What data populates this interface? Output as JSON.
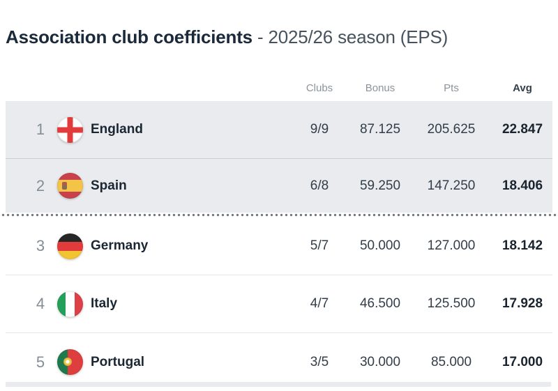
{
  "title": {
    "main": "Association club coefficients",
    "suffix": "- 2025/26 season (EPS)"
  },
  "table": {
    "columns": {
      "clubs": "Clubs",
      "bonus": "Bonus",
      "pts": "Pts",
      "avg": "Avg"
    },
    "sorted_by": "Avg",
    "eps_cutoff_after_rank": 2,
    "rows": [
      {
        "rank": "1",
        "country": "England",
        "flag_icon": "england-flag-icon",
        "clubs": "9/9",
        "bonus": "87.125",
        "pts": "205.625",
        "avg": "22.847",
        "qualified": true
      },
      {
        "rank": "2",
        "country": "Spain",
        "flag_icon": "spain-flag-icon",
        "clubs": "6/8",
        "bonus": "59.250",
        "pts": "147.250",
        "avg": "18.406",
        "qualified": true
      },
      {
        "rank": "3",
        "country": "Germany",
        "flag_icon": "germany-flag-icon",
        "clubs": "5/7",
        "bonus": "50.000",
        "pts": "127.000",
        "avg": "18.142",
        "qualified": false
      },
      {
        "rank": "4",
        "country": "Italy",
        "flag_icon": "italy-flag-icon",
        "clubs": "4/7",
        "bonus": "46.500",
        "pts": "125.500",
        "avg": "17.928",
        "qualified": false
      },
      {
        "rank": "5",
        "country": "Portugal",
        "flag_icon": "portugal-flag-icon",
        "clubs": "3/5",
        "bonus": "30.000",
        "pts": "85.000",
        "avg": "17.000",
        "qualified": false
      }
    ]
  },
  "colors": {
    "row_highlight_bg": "#e9ebee",
    "dotted_line_dot": "#71797f",
    "title_color": "#1b2a3a",
    "subtitle_color": "#46535f",
    "header_muted": "#8b939d",
    "text_dark": "#19242f"
  }
}
